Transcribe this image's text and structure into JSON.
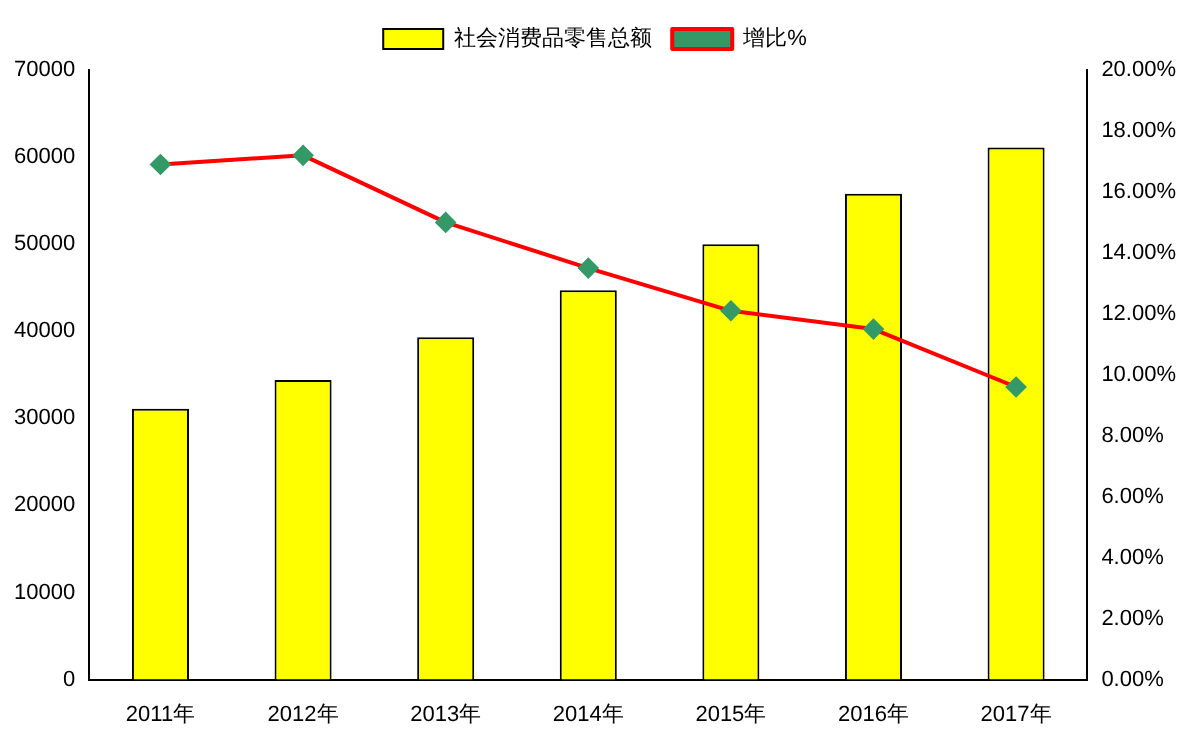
{
  "chart_data": {
    "type": "bar",
    "categories": [
      "2011年",
      "2012年",
      "2013年",
      "2014年",
      "2015年",
      "2016年",
      "2017年"
    ],
    "series": [
      {
        "name": "社会消费品零售总额",
        "color": "#ffff00",
        "values": [
          31100,
          34400,
          39300,
          44700,
          50000,
          55800,
          61100
        ]
      },
      {
        "name": "增比%",
        "type": "line",
        "axis": "y2",
        "color": "#ff0000",
        "marker": "diamond",
        "values": [
          16.9,
          17.2,
          15.0,
          13.5,
          12.1,
          11.5,
          9.6
        ]
      }
    ],
    "ylim": [
      0,
      70000
    ],
    "yticks": [
      0,
      10000,
      20000,
      30000,
      40000,
      50000,
      60000,
      70000
    ],
    "y2lim": [
      0,
      20
    ],
    "y2ticks": [
      {
        "value": 0,
        "label": "0.00%"
      },
      {
        "value": 2,
        "label": "2.00%"
      },
      {
        "value": 4,
        "label": "4.00%"
      },
      {
        "value": 6,
        "label": "6.00%"
      },
      {
        "value": 8,
        "label": "8.00%"
      },
      {
        "value": 10,
        "label": "10.00%"
      },
      {
        "value": 12,
        "label": "12.00%"
      },
      {
        "value": 14,
        "label": "14.00%"
      },
      {
        "value": 16,
        "label": "16.00%"
      },
      {
        "value": 18,
        "label": "18.00%"
      },
      {
        "value": 20,
        "label": "20.00%"
      }
    ],
    "grid": false,
    "legend": "top"
  }
}
